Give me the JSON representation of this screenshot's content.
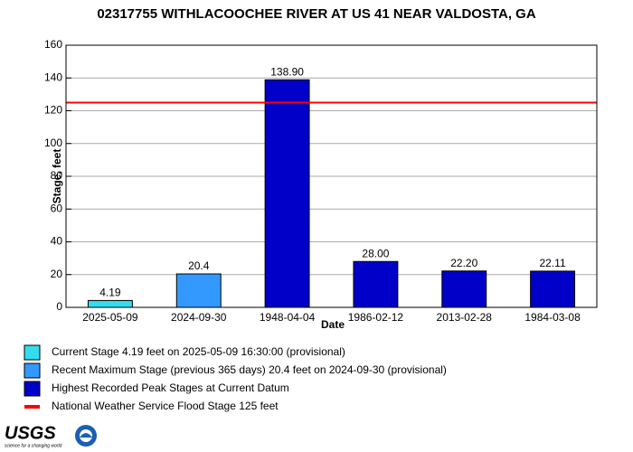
{
  "chart_data": {
    "type": "bar",
    "title": "02317755 WITHLACOOCHEE RIVER AT US 41 NEAR VALDOSTA, GA",
    "x_label": "Date",
    "y_label": "Stage, feet",
    "categories": [
      "2025-05-09",
      "2024-09-30",
      "1948-04-04",
      "1986-02-12",
      "2013-02-28",
      "1984-03-08"
    ],
    "values": [
      4.19,
      20.4,
      138.9,
      28,
      22.2,
      22.11
    ],
    "value_labels": [
      "4.19",
      "20.4",
      "138.90",
      "28.00",
      "22.20",
      "22.11"
    ],
    "colors": [
      "#33ddee",
      "#3399ff",
      "#0000c8",
      "#0000c8",
      "#0000c8",
      "#0000c8"
    ],
    "ylim": [
      0,
      160
    ],
    "yticks": [
      0,
      20,
      40,
      60,
      80,
      100,
      120,
      140,
      160
    ],
    "grid": true,
    "flood_stage": 125,
    "flood_color": "#ff0000",
    "legend": [
      {
        "label": "Current Stage 4.19 feet on 2025-05-09 16:30:00 (provisional)",
        "color": "#33ddee",
        "shape": "box"
      },
      {
        "label": "Recent Maximum Stage (previous 365 days) 20.4 feet on 2024-09-30 (provisional)",
        "color": "#3399ff",
        "shape": "box"
      },
      {
        "label": "Highest Recorded Peak Stages at Current Datum",
        "color": "#0000c8",
        "shape": "box"
      },
      {
        "label": "National Weather Service Flood Stage 125 feet",
        "color": "#ff0000",
        "shape": "line"
      }
    ],
    "logo": {
      "name": "USGS",
      "tagline": "science for a changing world"
    }
  }
}
